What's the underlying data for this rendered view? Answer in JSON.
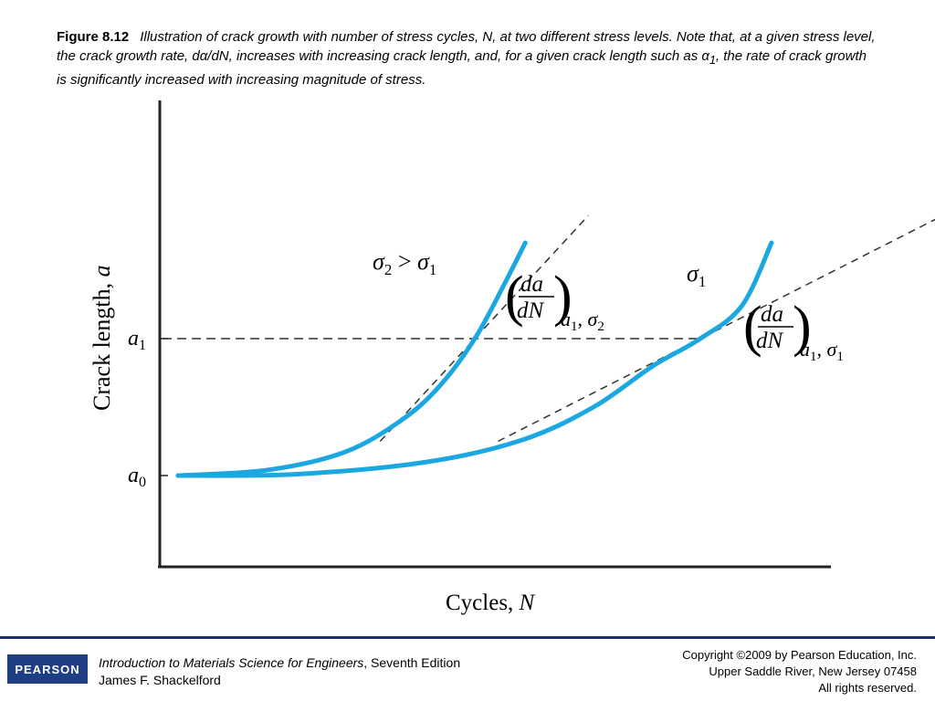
{
  "caption": {
    "figure_number": "Figure 8.12",
    "text_part1": "Illustration of crack growth with number of stress cycles, N, at two different stress levels. Note that, at a given stress level, the crack growth rate, dα/dN, increases with increasing crack length, and, for a given crack length such as α",
    "text_sub": "1",
    "text_part2": ", the rate of crack growth is significantly increased with increasing magnitude of stress."
  },
  "chart_data": {
    "type": "line",
    "xlabel": "Cycles, N",
    "ylabel": "Crack length, a",
    "y_ticks": [
      {
        "name": "a",
        "sub": "0",
        "value": 0
      },
      {
        "name": "a",
        "sub": "1",
        "value": 1
      }
    ],
    "series": [
      {
        "name": "σ2 > σ1",
        "color": "#1ba7e0",
        "points": [
          [
            0,
            0
          ],
          [
            0.15,
            0.04
          ],
          [
            0.28,
            0.17
          ],
          [
            0.375,
            0.4
          ],
          [
            0.44,
            0.65
          ],
          [
            0.5,
            1.0
          ],
          [
            0.55,
            1.4
          ],
          [
            0.585,
            1.7
          ]
        ]
      },
      {
        "name": "σ1",
        "color": "#1ba7e0",
        "points": [
          [
            0,
            0
          ],
          [
            0.2,
            0.01
          ],
          [
            0.42,
            0.1
          ],
          [
            0.58,
            0.26
          ],
          [
            0.7,
            0.5
          ],
          [
            0.8,
            0.8
          ],
          [
            0.88,
            1.0
          ],
          [
            0.95,
            1.24
          ],
          [
            1.0,
            1.7
          ]
        ]
      }
    ],
    "reference_line": {
      "y": 1,
      "style": "dashed"
    },
    "tangents": [
      {
        "label": "(da/dN) a1, σ2",
        "at_x": 0.5,
        "at_y": 1,
        "slope": 4.7
      },
      {
        "label": "(da/dN) a1, σ1",
        "at_x": 0.88,
        "at_y": 1,
        "slope": 2.2
      }
    ]
  },
  "labels": {
    "sigma2_name": "σ",
    "sigma2_sub": "2",
    "gt": " > ",
    "sigma1_name": "σ",
    "sigma1_sub": "1",
    "curve_sigma1": "σ",
    "curve_sigma1_sub": "1",
    "deriv_num": "da",
    "deriv_den": "dN",
    "t1_a": "a",
    "t1_a_sub": "1",
    "t1_sep": ", ",
    "t1_s": "σ",
    "t1_s_sub": "2",
    "t2_a": "a",
    "t2_a_sub": "1",
    "t2_sep": ", ",
    "t2_s": "σ",
    "t2_s_sub": "1",
    "axis_y_main": "Crack length, ",
    "axis_y_var": "a",
    "axis_x_main": "Cycles, ",
    "axis_x_var": "N"
  },
  "footer": {
    "logo": "PEARSON",
    "book_title": "Introduction to Materials Science for Engineers",
    "edition": ", Seventh Edition",
    "author": "James F. Shackelford",
    "copyright": "Copyright ©2009 by Pearson Education, Inc.",
    "location": "Upper Saddle River, New Jersey 07458",
    "rights": "All rights reserved."
  },
  "colors": {
    "curve": "#1ba7e0",
    "footer_rule": "#1d2f6b",
    "logo_bg": "#1e3d83"
  }
}
